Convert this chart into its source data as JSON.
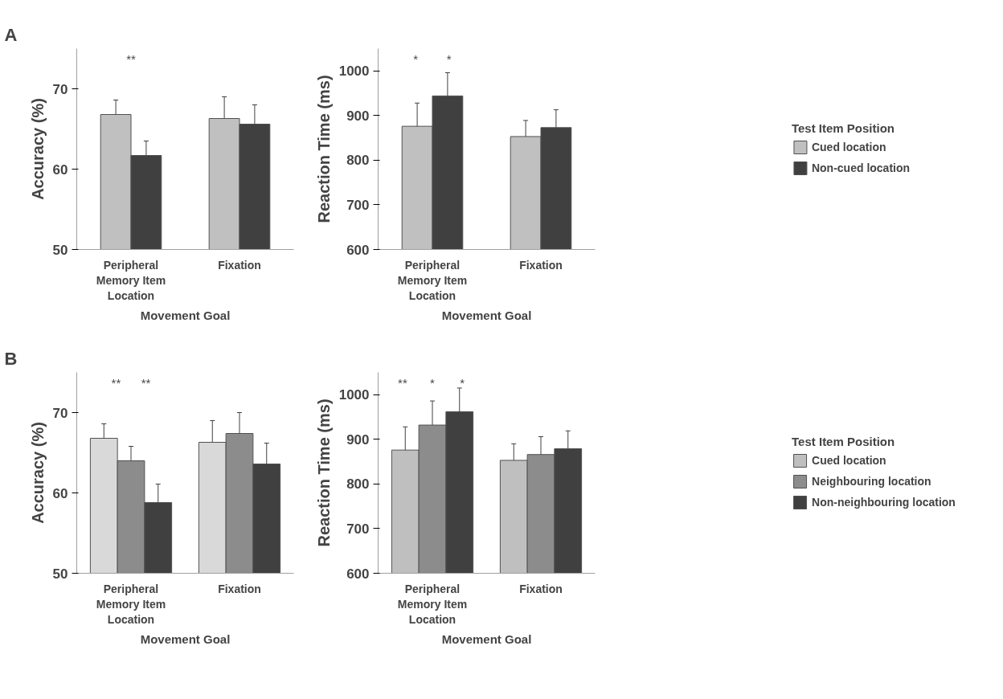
{
  "chart_data": [
    {
      "type": "bar",
      "title": "A",
      "ylabel": "Accuracy (%)",
      "xlabel": "Movement Goal",
      "categories": [
        "Peripheral\nMemory Item\nLocation",
        "Fixation"
      ],
      "ylim": [
        50,
        75
      ],
      "yticks": [
        50,
        60,
        70
      ],
      "grid": false,
      "annotations": [
        "**"
      ],
      "series": [
        {
          "color": "#c0c0c0",
          "values": [
            66.8,
            66.3
          ],
          "errors": [
            1.8,
            2.7
          ]
        },
        {
          "color": "#404040",
          "values": [
            61.7,
            65.6
          ],
          "errors": [
            1.8,
            2.4
          ]
        }
      ]
    },
    {
      "type": "bar",
      "ylabel": "Reaction Time (ms)",
      "xlabel": "Movement Goal",
      "categories": [
        "Peripheral\nMemory Item\nLocation",
        "Fixation"
      ],
      "ylim": [
        600,
        1050
      ],
      "yticks": [
        600,
        700,
        800,
        900,
        1000
      ],
      "grid": false,
      "legend": "right",
      "legend_title": "Test Item Position",
      "annotations": [
        "*",
        "*"
      ],
      "series": [
        {
          "name": "Cued location",
          "color": "#c0c0c0",
          "values": [
            876,
            853
          ],
          "errors": [
            52,
            36
          ]
        },
        {
          "name": "Non-cued location",
          "color": "#404040",
          "values": [
            944,
            873
          ],
          "errors": [
            52,
            40
          ]
        }
      ]
    },
    {
      "type": "bar",
      "title": "B",
      "ylabel": "Accuracy (%)",
      "xlabel": "Movement Goal",
      "categories": [
        "Peripheral\nMemory Item\nLocation",
        "Fixation"
      ],
      "ylim": [
        50,
        75
      ],
      "yticks": [
        50,
        60,
        70
      ],
      "grid": false,
      "annotations": [
        "**",
        "**"
      ],
      "series": [
        {
          "color": "#d9d9d9",
          "values": [
            66.8,
            66.3
          ],
          "errors": [
            1.8,
            2.7
          ]
        },
        {
          "color": "#8c8c8c",
          "values": [
            64.0,
            67.4
          ],
          "errors": [
            1.8,
            2.6
          ]
        },
        {
          "color": "#404040",
          "values": [
            58.8,
            63.6
          ],
          "errors": [
            2.3,
            2.6
          ]
        }
      ]
    },
    {
      "type": "bar",
      "ylabel": "Reaction Time (ms)",
      "xlabel": "Movement Goal",
      "categories": [
        "Peripheral\nMemory Item\nLocation",
        "Fixation"
      ],
      "ylim": [
        600,
        1050
      ],
      "yticks": [
        600,
        700,
        800,
        900,
        1000
      ],
      "grid": false,
      "legend": "right",
      "legend_title": "Test Item Position",
      "annotations": [
        "**",
        "*",
        "*"
      ],
      "series": [
        {
          "name": "Cued location",
          "color": "#bfbfbf",
          "values": [
            876,
            853
          ],
          "errors": [
            52,
            37
          ]
        },
        {
          "name": "Neighbouring location",
          "color": "#8c8c8c",
          "values": [
            932,
            866
          ],
          "errors": [
            54,
            40
          ]
        },
        {
          "name": "Non-neighbouring location",
          "color": "#404040",
          "values": [
            962,
            879
          ],
          "errors": [
            53,
            40
          ]
        }
      ]
    }
  ]
}
